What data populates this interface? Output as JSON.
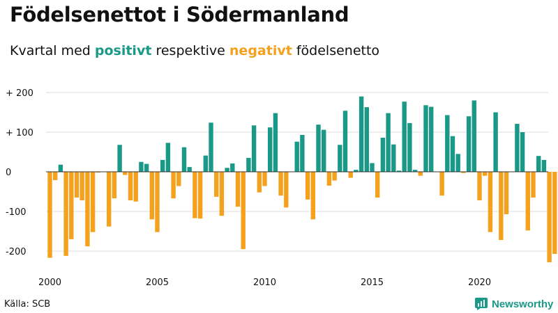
{
  "header": {
    "title": "Födelsenettot i Södermanland",
    "subtitle_prefix": "Kvartal med ",
    "subtitle_positive": "positivt",
    "subtitle_middle": " respektive ",
    "subtitle_negative": "negativt",
    "subtitle_suffix": " födelsenetto"
  },
  "footer": {
    "source": "Källa: SCB",
    "brand": "Newsworthy"
  },
  "colors": {
    "positive": "#1a9988",
    "negative": "#f4a11d",
    "grid": "#dddddd",
    "zero_line": "#333333"
  },
  "chart_data": {
    "type": "bar",
    "title": "Födelsenettot i Södermanland",
    "xlabel": "",
    "ylabel": "",
    "start_year": 2000,
    "periods_per_year": 4,
    "ylim": [
      -235,
      225
    ],
    "y_ticks": [
      200,
      100,
      0,
      -100,
      -200
    ],
    "y_tick_labels": [
      "+ 200",
      "+ 100",
      "0",
      "-100",
      "-200"
    ],
    "x_ticks": [
      2000,
      2005,
      2010,
      2015,
      2020
    ],
    "x_tick_labels": [
      "2000",
      "2005",
      "2010",
      "2015",
      "2020"
    ],
    "values": [
      -217,
      -21,
      18,
      -212,
      -170,
      -65,
      -72,
      -188,
      -152,
      -2,
      0,
      -138,
      -67,
      68,
      -8,
      -72,
      -75,
      25,
      20,
      -120,
      -152,
      30,
      73,
      -67,
      -36,
      62,
      12,
      -117,
      -118,
      41,
      124,
      -63,
      -111,
      10,
      21,
      -88,
      -195,
      35,
      117,
      -52,
      -36,
      112,
      148,
      -60,
      -90,
      0,
      76,
      93,
      -70,
      -120,
      119,
      106,
      -35,
      -22,
      68,
      154,
      -15,
      5,
      190,
      163,
      22,
      -65,
      86,
      148,
      69,
      3,
      177,
      123,
      5,
      -10,
      168,
      164,
      0,
      -60,
      143,
      90,
      45,
      -3,
      140,
      180,
      -72,
      -10,
      -152,
      150,
      -172,
      -107,
      0,
      121,
      100,
      -148,
      -65,
      40,
      30,
      -228,
      -207
    ]
  }
}
